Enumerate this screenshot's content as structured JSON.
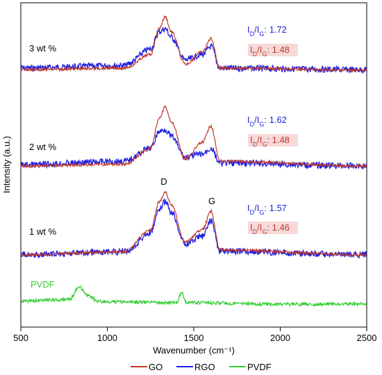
{
  "chart_data": {
    "type": "line",
    "xlabel": "Wavenumber (cm⁻¹)",
    "ylabel": "Intensity (a.u.)",
    "xlim": [
      500,
      2500
    ],
    "xticks": [
      "500",
      "1000",
      "1500",
      "2000",
      "2500"
    ],
    "grid": false,
    "legend_position": "bottom",
    "legend": [
      "GO",
      "RGO",
      "PVDF"
    ],
    "colors": {
      "GO": "#c0392b",
      "RGO": "#1f1fe0",
      "PVDF": "#33cc33"
    },
    "peak_labels": {
      "D": "D",
      "G": "G"
    },
    "panels": [
      {
        "label": "3 wt %",
        "ratios": [
          {
            "series": "RGO",
            "text": "1.72"
          },
          {
            "series": "GO",
            "text": "1.48"
          }
        ],
        "series": [
          {
            "name": "GO",
            "x": [
              500,
              1100,
              1250,
              1300,
              1335,
              1370,
              1450,
              1550,
              1600,
              1650,
              2500
            ],
            "y": [
              0.02,
              0.05,
              0.3,
              0.78,
              1.0,
              0.72,
              0.12,
              0.35,
              0.6,
              0.05,
              0.01
            ]
          },
          {
            "name": "RGO",
            "x": [
              500,
              1100,
              1250,
              1300,
              1335,
              1370,
              1450,
              1550,
              1600,
              1650,
              2500
            ],
            "y": [
              0.05,
              0.1,
              0.4,
              0.72,
              0.78,
              0.62,
              0.2,
              0.3,
              0.45,
              0.05,
              0.02
            ]
          }
        ]
      },
      {
        "label": "2 wt %",
        "ratios": [
          {
            "series": "RGO",
            "text": "1.62"
          },
          {
            "series": "GO",
            "text": "1.48"
          }
        ],
        "series": [
          {
            "name": "GO",
            "x": [
              500,
              1100,
              1250,
              1300,
              1335,
              1370,
              1450,
              1550,
              1600,
              1650,
              2500
            ],
            "y": [
              0.0,
              0.03,
              0.3,
              0.8,
              1.0,
              0.75,
              0.12,
              0.4,
              0.68,
              0.08,
              0.0
            ]
          },
          {
            "name": "RGO",
            "x": [
              500,
              1100,
              1250,
              1300,
              1335,
              1370,
              1450,
              1550,
              1600,
              1650,
              2500
            ],
            "y": [
              0.02,
              0.08,
              0.3,
              0.58,
              0.62,
              0.5,
              0.15,
              0.2,
              0.3,
              0.05,
              0.0
            ]
          }
        ]
      },
      {
        "label": "1 wt %",
        "ratios": [
          {
            "series": "RGO",
            "text": "1.57"
          },
          {
            "series": "GO",
            "text": "1.46"
          }
        ],
        "series": [
          {
            "name": "GO",
            "x": [
              500,
              1100,
              1250,
              1300,
              1335,
              1370,
              1450,
              1550,
              1600,
              1650,
              2500
            ],
            "y": [
              0.0,
              0.05,
              0.4,
              0.85,
              1.0,
              0.8,
              0.2,
              0.4,
              0.7,
              0.08,
              0.0
            ]
          },
          {
            "name": "RGO",
            "x": [
              500,
              1100,
              1250,
              1300,
              1335,
              1370,
              1450,
              1550,
              1600,
              1650,
              2500
            ],
            "y": [
              0.0,
              0.05,
              0.35,
              0.72,
              0.85,
              0.68,
              0.18,
              0.3,
              0.55,
              0.06,
              0.0
            ]
          }
        ]
      },
      {
        "label": "PVDF",
        "ratios": [],
        "series": [
          {
            "name": "PVDF",
            "x": [
              500,
              780,
              840,
              880,
              950,
              1400,
              1430,
              1460,
              2000,
              2500
            ],
            "y": [
              0.1,
              0.15,
              0.55,
              0.3,
              0.08,
              0.05,
              0.35,
              0.05,
              0.0,
              0.0
            ]
          }
        ]
      }
    ]
  }
}
